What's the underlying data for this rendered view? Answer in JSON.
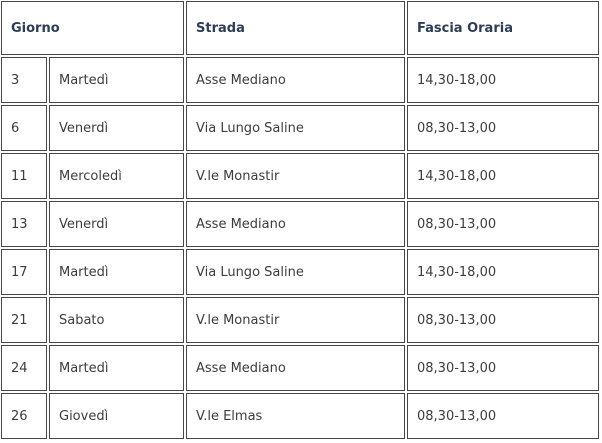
{
  "colors": {
    "header_text": "#2e3d54",
    "body_text": "#3d3d3d",
    "border": "#474747",
    "background": "#ffffff"
  },
  "table": {
    "headers": {
      "giorno": "Giorno",
      "strada": "Strada",
      "fascia_oraria": "Fascia Oraria"
    },
    "rows": [
      {
        "day_number": "3",
        "day_name": "Martedì",
        "strada": "Asse Mediano",
        "fascia": "14,30-18,00"
      },
      {
        "day_number": "6",
        "day_name": "Venerdì",
        "strada": "Via Lungo Saline",
        "fascia": "08,30-13,00"
      },
      {
        "day_number": "11",
        "day_name": "Mercoledì",
        "strada": "V.le Monastir",
        "fascia": "14,30-18,00"
      },
      {
        "day_number": "13",
        "day_name": "Venerdì",
        "strada": "Asse Mediano",
        "fascia": "08,30-13,00"
      },
      {
        "day_number": "17",
        "day_name": "Martedì",
        "strada": "Via Lungo Saline",
        "fascia": "14,30-18,00"
      },
      {
        "day_number": "21",
        "day_name": "Sabato",
        "strada": "V.le Monastir",
        "fascia": "08,30-13,00"
      },
      {
        "day_number": "24",
        "day_name": "Martedì",
        "strada": "Asse Mediano",
        "fascia": "08,30-13,00"
      },
      {
        "day_number": "26",
        "day_name": "Giovedì",
        "strada": "V.le Elmas",
        "fascia": "08,30-13,00"
      }
    ]
  }
}
